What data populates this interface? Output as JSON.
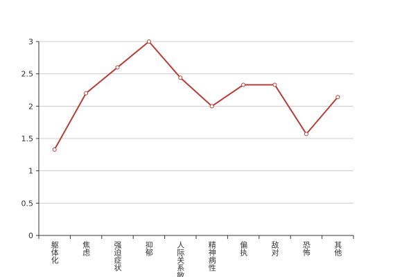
{
  "chart_data": {
    "type": "line",
    "categories": [
      "躯体化",
      "焦虑",
      "强迫症状",
      "抑郁",
      "人际关系敏感",
      "精神病性",
      "偏执",
      "敌对",
      "恐怖",
      "其他"
    ],
    "values": [
      1.33,
      2.2,
      2.6,
      3,
      2.44,
      2,
      2.33,
      2.33,
      1.57,
      2.14
    ],
    "color": "#b83b35",
    "ylim": [
      0,
      3
    ],
    "yticks": [
      0,
      0.5,
      1,
      1.5,
      2,
      2.5,
      3
    ],
    "grid": true
  }
}
